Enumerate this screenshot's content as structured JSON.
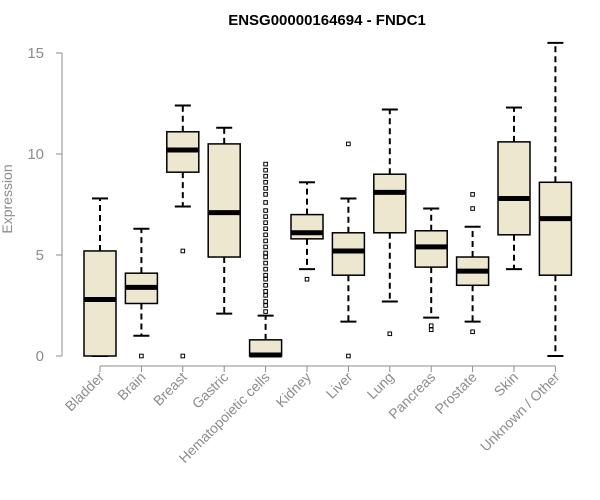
{
  "chart_data": {
    "type": "boxplot",
    "title": "ENSG00000164694 - FNDC1",
    "ylabel": "Expression",
    "xlabel": "",
    "ylim": [
      0,
      15
    ],
    "yticks": [
      0,
      5,
      10,
      15
    ],
    "grid": false,
    "box_fill": "#ede7cf",
    "line_color": "#000000",
    "axis_color": "#8c8c8c",
    "categories": [
      "Bladder",
      "Brain",
      "Breast",
      "Gastric",
      "Hematopoietic cells",
      "Kidney",
      "Liver",
      "Lung",
      "Pancreas",
      "Prostate",
      "Skin",
      "Unknown / Other"
    ],
    "boxes": [
      {
        "name": "Bladder",
        "whisker_low": 0,
        "q1": 0,
        "median": 2.8,
        "q3": 5.2,
        "whisker_high": 7.8,
        "outliers": []
      },
      {
        "name": "Brain",
        "whisker_low": 1.0,
        "q1": 2.6,
        "median": 3.4,
        "q3": 4.1,
        "whisker_high": 6.3,
        "outliers": [
          0
        ]
      },
      {
        "name": "Breast",
        "whisker_low": 7.4,
        "q1": 9.1,
        "median": 10.2,
        "q3": 11.1,
        "whisker_high": 12.4,
        "outliers": [
          5.2,
          0
        ]
      },
      {
        "name": "Gastric",
        "whisker_low": 2.1,
        "q1": 4.9,
        "median": 7.1,
        "q3": 10.5,
        "whisker_high": 11.3,
        "outliers": []
      },
      {
        "name": "Hematopoietic cells",
        "whisker_low": 0,
        "q1": 0,
        "median": 0.05,
        "q3": 0.8,
        "whisker_high": 2.0,
        "outliers": [
          2.2,
          2.5,
          2.7,
          3.0,
          3.2,
          3.5,
          3.8,
          4.0,
          4.3,
          4.6,
          4.9,
          5.1,
          5.4,
          5.7,
          6.0,
          6.3,
          6.6,
          6.9,
          7.2,
          7.6,
          8.0,
          8.3,
          8.6,
          8.9,
          9.2,
          9.5
        ]
      },
      {
        "name": "Kidney",
        "whisker_low": 4.3,
        "q1": 5.8,
        "median": 6.1,
        "q3": 7.0,
        "whisker_high": 8.6,
        "outliers": [
          3.8
        ]
      },
      {
        "name": "Liver",
        "whisker_low": 1.7,
        "q1": 4.0,
        "median": 5.2,
        "q3": 6.1,
        "whisker_high": 7.8,
        "outliers": [
          10.5,
          0
        ]
      },
      {
        "name": "Lung",
        "whisker_low": 2.7,
        "q1": 6.1,
        "median": 8.1,
        "q3": 9.0,
        "whisker_high": 12.2,
        "outliers": [
          1.1
        ]
      },
      {
        "name": "Pancreas",
        "whisker_low": 1.9,
        "q1": 4.4,
        "median": 5.4,
        "q3": 6.2,
        "whisker_high": 7.3,
        "outliers": [
          1.5,
          1.3
        ]
      },
      {
        "name": "Prostate",
        "whisker_low": 1.7,
        "q1": 3.5,
        "median": 4.2,
        "q3": 4.9,
        "whisker_high": 6.4,
        "outliers": [
          8.0,
          7.3,
          1.2
        ]
      },
      {
        "name": "Skin",
        "whisker_low": 4.3,
        "q1": 6.0,
        "median": 7.8,
        "q3": 10.6,
        "whisker_high": 12.3,
        "outliers": []
      },
      {
        "name": "Unknown / Other",
        "whisker_low": 0,
        "q1": 4.0,
        "median": 6.8,
        "q3": 8.6,
        "whisker_high": 15.5,
        "outliers": []
      }
    ]
  }
}
